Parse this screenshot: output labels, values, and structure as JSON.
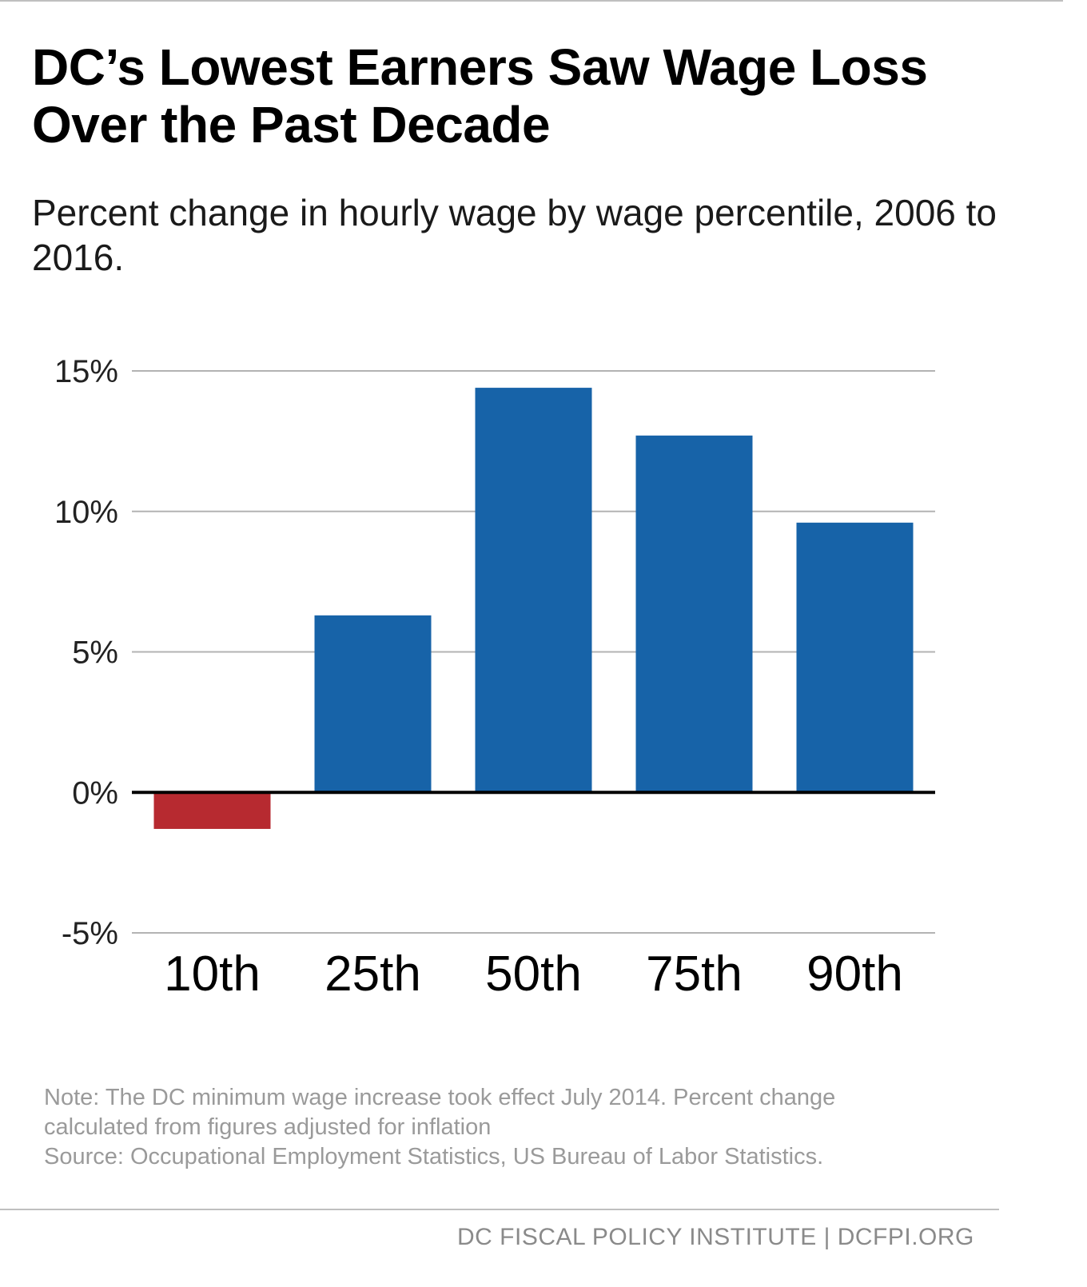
{
  "title": "DC’s Lowest Earners Saw Wage Loss Over the Past Decade",
  "subtitle": "Percent change in hourly wage by wage percentile, 2006 to 2016.",
  "note_lines": [
    "Note: The DC minimum wage increase took effect July 2014. Percent change",
    "calculated from figures adjusted for inflation",
    "Source: Occupational Employment Statistics, US Bureau of Labor Statistics."
  ],
  "footer": "DC FISCAL POLICY INSTITUTE | DCFPI.ORG",
  "colors": {
    "positive": "#1763a8",
    "negative": "#b72a30",
    "gridline": "#b3b3b3",
    "zero_line": "#000000"
  },
  "chart_data": {
    "type": "bar",
    "title": "",
    "xlabel": "",
    "ylabel": "",
    "categories": [
      "10th",
      "25th",
      "50th",
      "75th",
      "90th"
    ],
    "values": [
      -1.3,
      6.3,
      14.4,
      12.7,
      9.6
    ],
    "ylim": [
      -5,
      15
    ],
    "yticks": [
      -5,
      0,
      5,
      10,
      15
    ],
    "ytick_labels": [
      "-5%",
      "0%",
      "5%",
      "10%",
      "15%"
    ],
    "grid": true,
    "legend": "none"
  }
}
